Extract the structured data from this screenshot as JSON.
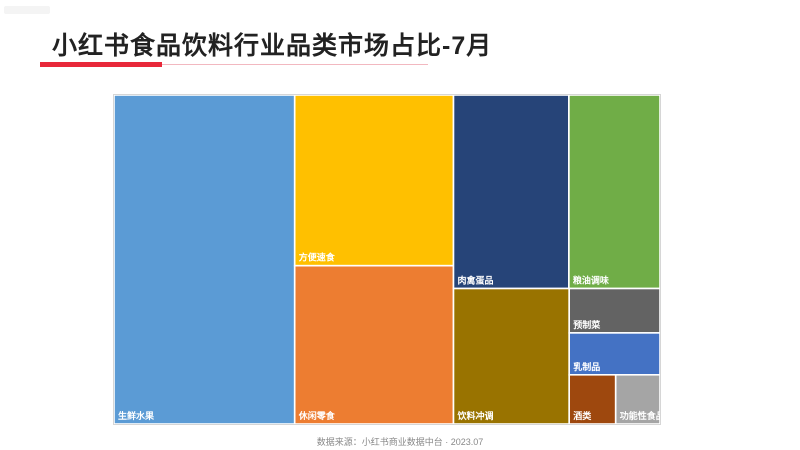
{
  "title": "小红书食品饮料行业品类市场占比-7月",
  "source": "数据来源：小红书商业数据中台 · 2023.07",
  "chart_data": {
    "type": "treemap",
    "title": "",
    "items": [
      {
        "label": "生鲜水果",
        "value": 546,
        "color": "#5b9bd5"
      },
      {
        "label": "方便速食",
        "value": 249,
        "color": "#ffc000"
      },
      {
        "label": "休闲零食",
        "value": 231,
        "color": "#ed7d31"
      },
      {
        "label": "肉禽蛋品",
        "value": 205,
        "color": "#264478"
      },
      {
        "label": "粮油调味",
        "value": 162,
        "color": "#70ad47"
      },
      {
        "label": "饮料冲调",
        "value": 144,
        "color": "#997300"
      },
      {
        "label": "预制菜",
        "value": 37,
        "color": "#636363"
      },
      {
        "label": "乳制品",
        "value": 35,
        "color": "#4472c4"
      },
      {
        "label": "酒类",
        "value": 21,
        "color": "#9e480e"
      },
      {
        "label": "功能性食品",
        "value": 20,
        "color": "#a5a5a5"
      }
    ]
  }
}
